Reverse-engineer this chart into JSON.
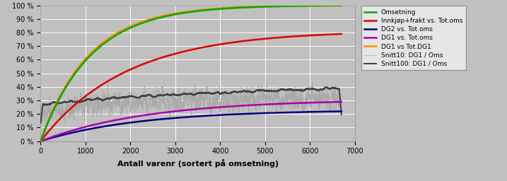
{
  "title": "",
  "xlabel": "Antall varenr (sortert på omsetning)",
  "ylabel": "",
  "xlim": [
    0,
    7000
  ],
  "ylim": [
    0,
    1.0
  ],
  "yticks": [
    0.0,
    0.1,
    0.2,
    0.3,
    0.4,
    0.5,
    0.6,
    0.7,
    0.8,
    0.9,
    1.0
  ],
  "ytick_labels": [
    "0 %",
    "10 %",
    "20 %",
    "30 %",
    "40 %",
    "50 %",
    "60 %",
    "70 %",
    "80 %",
    "90 %",
    "100 %"
  ],
  "xticks": [
    0,
    1000,
    2000,
    3000,
    4000,
    5000,
    6000,
    7000
  ],
  "n_points": 6700,
  "background_color": "#c0c0c0",
  "plot_bg_color": "#c0c0c0",
  "grid_color": "#ffffff",
  "legend_labels": [
    "Omsetning",
    "Innkjøp+frakt vs. Tot.oms",
    "DG2 vs. Tot.oms",
    "DG1 vs. Tot.oms",
    "DG1 vs Tot.DG1",
    "Snitt10: DG1 / Oms",
    "Snitt100: DG1 / Oms"
  ],
  "legend_colors": [
    "#00aa00",
    "#dd0000",
    "#000080",
    "#aa00aa",
    "#ff8c00",
    "#aaaaaa",
    "#404040"
  ],
  "line_widths": [
    1.8,
    1.8,
    1.8,
    1.8,
    1.8,
    0.5,
    1.4
  ]
}
